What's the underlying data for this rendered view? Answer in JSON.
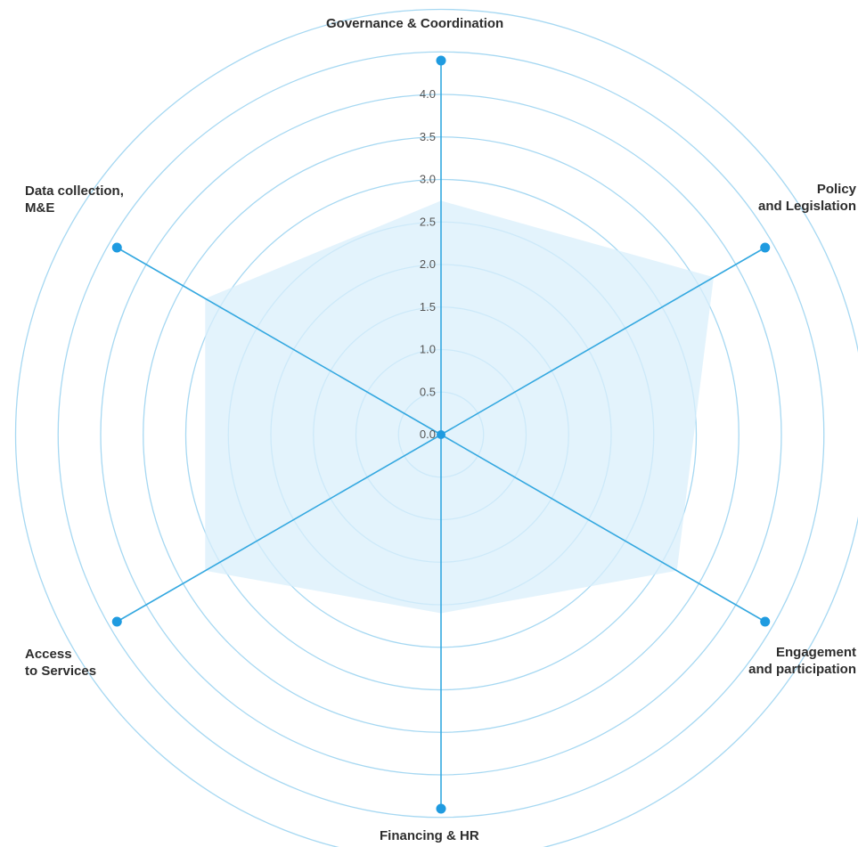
{
  "chart_data": {
    "type": "radar",
    "axes": [
      "Governance & Coordination",
      "Policy\nand Legislation",
      "Engagement\nand participation",
      "Financing & HR",
      "Access\nto Services",
      "Data collection,\nM&E"
    ],
    "values": [
      2.75,
      3.7,
      3.2,
      2.1,
      3.2,
      3.2
    ],
    "radial_ticks": [
      "0.0",
      "0.5",
      "1.0",
      "1.5",
      "2.0",
      "2.5",
      "3.0",
      "3.5",
      "4.0"
    ],
    "rmin": 0,
    "rmax": 4.0,
    "rings": 10,
    "grid": true,
    "colors": {
      "grid": "#a6d8f2",
      "axis": "#34a8e0",
      "fill": "#d9effb",
      "dot": "#1f9be0"
    }
  }
}
